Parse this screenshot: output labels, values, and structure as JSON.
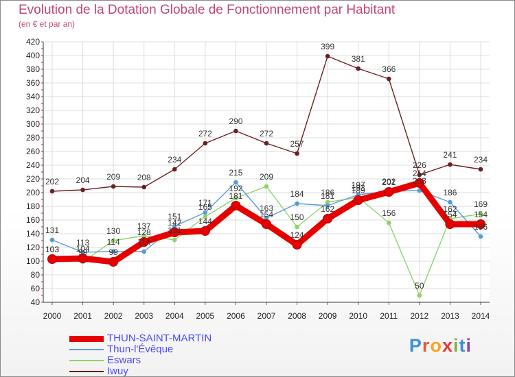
{
  "title": "Evolution de la Dotation Globale de Fonctionnement par Habitant",
  "subtitle": "(en € et par an)",
  "logo": {
    "text": "Proxiti",
    "colors": [
      "#3a8fd8",
      "#e25b3a",
      "#f5a623",
      "#e53935",
      "#7cb342",
      "#3a8fd8",
      "#8e44ad"
    ]
  },
  "chart_data": {
    "type": "line",
    "x": [
      "2000",
      "2001",
      "2002",
      "2003",
      "2004",
      "2005",
      "2006",
      "2007",
      "2008",
      "2009",
      "2010",
      "2011",
      "2012",
      "2013",
      "2014"
    ],
    "ylim": [
      40,
      420
    ],
    "yticks": [
      40,
      60,
      80,
      100,
      120,
      140,
      160,
      180,
      200,
      220,
      240,
      260,
      280,
      300,
      320,
      340,
      360,
      380,
      400,
      420
    ],
    "grid": true,
    "legend_position": "bottom-left",
    "series": [
      {
        "name": "THUN-SAINT-MARTIN",
        "color": "#e60000",
        "values": [
          103,
          104,
          99,
          128,
          142,
          144,
          181,
          154,
          124,
          162,
          189,
          201,
          214,
          154,
          154
        ]
      },
      {
        "name": "Thun-l'Évêque",
        "color": "#5b9bd5",
        "values": [
          131,
          113,
          114,
          114,
          151,
          171,
          215,
          163,
          184,
          181,
          197,
          202,
          203,
          186,
          136
        ]
      },
      {
        "name": "Eswars",
        "color": "#8fd36b",
        "values": [
          103,
          99,
          130,
          137,
          131,
          165,
          192,
          209,
          150,
          186,
          193,
          156,
          50,
          162,
          169
        ]
      },
      {
        "name": "Iwuy",
        "color": "#6b1f1f",
        "values": [
          202,
          204,
          209,
          208,
          234,
          272,
          290,
          272,
          257,
          399,
          381,
          366,
          226,
          241,
          234
        ]
      }
    ]
  }
}
